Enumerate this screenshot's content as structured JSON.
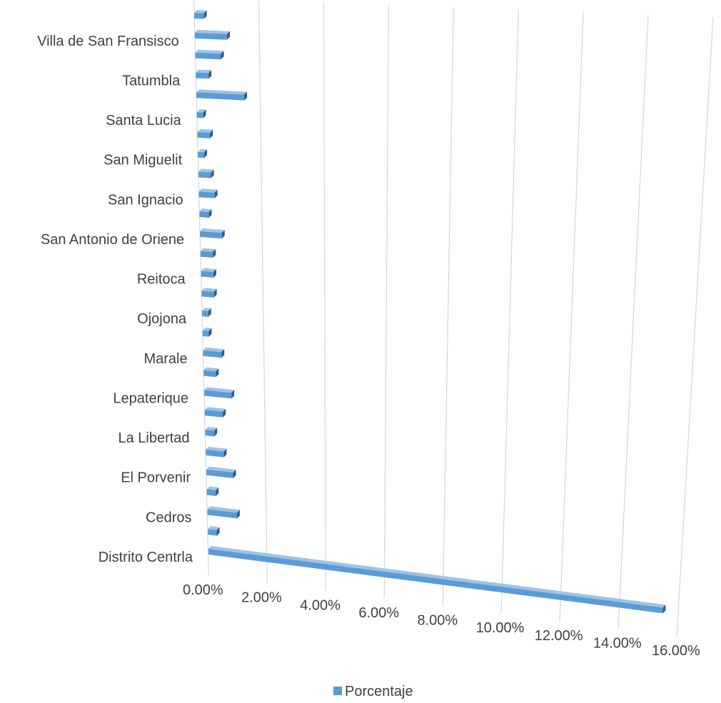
{
  "chart_data": {
    "type": "bar",
    "orientation": "horizontal",
    "perspective": "3d",
    "categories": [
      "Distrito Centrla",
      "",
      "Cedros",
      "",
      "El Porvenir",
      "",
      "La Libertad",
      "",
      "Lepaterique",
      "",
      "Marale",
      "",
      "Ojojona",
      "",
      "Reitoca",
      "",
      "San Antonio de Oriene",
      "",
      "San Ignacio",
      "",
      "San Miguelit",
      "",
      "Santa Lucia",
      "",
      "Tatumbla",
      "",
      "Villa de San Fransisco",
      ""
    ],
    "series": [
      {
        "name": "Porcentaje",
        "values": [
          0.155,
          0.003,
          0.01,
          0.003,
          0.009,
          0.006,
          0.003,
          0.006,
          0.009,
          0.004,
          0.006,
          0.002,
          0.002,
          0.004,
          0.004,
          0.004,
          0.007,
          0.003,
          0.005,
          0.004,
          0.002,
          0.004,
          0.002,
          0.015,
          0.004,
          0.008,
          0.01,
          0.003
        ]
      }
    ],
    "x_ticks": [
      "0.00%",
      "2.00%",
      "4.00%",
      "6.00%",
      "8.00%",
      "10.00%",
      "12.00%",
      "14.00%",
      "16.00%"
    ],
    "xlim": [
      0,
      0.16
    ],
    "grid": true,
    "legend": {
      "position": "bottom",
      "entries": [
        "Porcentaje"
      ]
    },
    "bar_color": "#5b9bd5",
    "bar_side_color": "#2e5c8a",
    "bar_top_color": "#9dc3e6"
  }
}
